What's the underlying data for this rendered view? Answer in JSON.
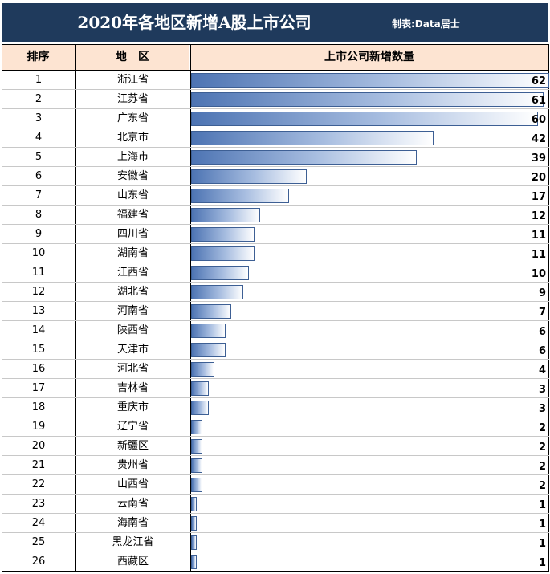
{
  "title": "2020年各地区新增A股上市公司",
  "credit": "制表:Data居士",
  "headers": {
    "rank": "排序",
    "region": "地　区",
    "value": "上市公司新增数量"
  },
  "colors": {
    "title_bg": "#1f3a5c",
    "header_bg": "#fde4d2",
    "bar_start": "#4d74b3",
    "bar_border": "#3d5f94"
  },
  "chart_data": {
    "type": "bar",
    "orientation": "horizontal",
    "categories": [
      "浙江省",
      "江苏省",
      "广东省",
      "北京市",
      "上海市",
      "安徽省",
      "山东省",
      "福建省",
      "四川省",
      "湖南省",
      "江西省",
      "湖北省",
      "河南省",
      "陕西省",
      "天津市",
      "河北省",
      "吉林省",
      "重庆市",
      "辽宁省",
      "新疆区",
      "贵州省",
      "山西省",
      "云南省",
      "海南省",
      "黑龙江省",
      "西藏区"
    ],
    "ranks": [
      1,
      2,
      3,
      4,
      5,
      6,
      7,
      8,
      9,
      10,
      11,
      12,
      13,
      14,
      15,
      16,
      17,
      18,
      19,
      20,
      21,
      22,
      23,
      24,
      25,
      26
    ],
    "values": [
      62,
      61,
      60,
      42,
      39,
      20,
      17,
      12,
      11,
      11,
      10,
      9,
      7,
      6,
      6,
      4,
      3,
      3,
      2,
      2,
      2,
      2,
      1,
      1,
      1,
      1
    ],
    "xlim": [
      0,
      62
    ]
  }
}
